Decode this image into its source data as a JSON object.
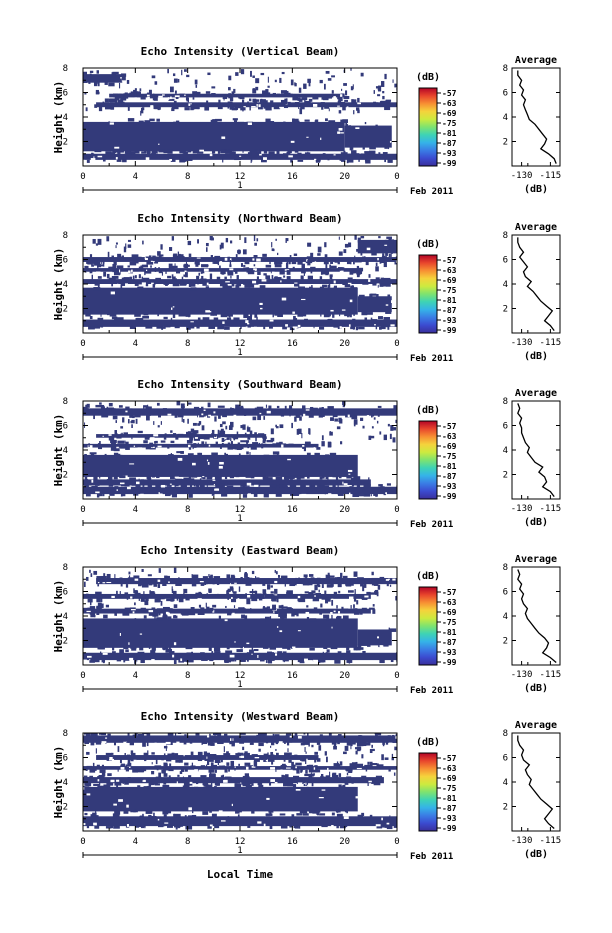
{
  "figure": {
    "x_axis_title": "Local Time",
    "colorbar_unit": "(dB)",
    "colorbar_ticks": [
      "-57",
      "-63",
      "-69",
      "-75",
      "-81",
      "-87",
      "-93",
      "-99"
    ],
    "x_ticks": [
      "0",
      "4",
      "8",
      "12",
      "16",
      "20",
      "0"
    ],
    "date_label": "Feb 2011",
    "day_label": "1",
    "height_label": "Height (km)",
    "y_ticks": [
      "2",
      "4",
      "6",
      "8"
    ],
    "avg_title": "Average",
    "avg_xlabel": "(dB)",
    "colors": {
      "echo": "#333a7a",
      "colormap": [
        "#b40426",
        "#e8452c",
        "#f78f33",
        "#f5d33c",
        "#cdea3f",
        "#7ee36f",
        "#3ed3b5",
        "#35b3e8",
        "#3a7de5",
        "#3b4bd0",
        "#3a2f9b"
      ]
    }
  },
  "chart_data": [
    {
      "type": "heatmap",
      "title": "Echo Intensity (Vertical Beam)",
      "x_range_hours": [
        0,
        24
      ],
      "y_range_km": [
        0,
        8
      ],
      "color_range_db": [
        -99,
        -57
      ],
      "coverage": [
        {
          "x0": 0,
          "x1": 20,
          "y0": 1.2,
          "y1": 3.6
        },
        {
          "x0": 20,
          "x1": 23.6,
          "y0": 1.5,
          "y1": 3.3
        },
        {
          "x0": 0,
          "x1": 24,
          "y0": 0.5,
          "y1": 1.0
        },
        {
          "x0": 1,
          "x1": 24,
          "y0": 4.8,
          "y1": 5.2
        },
        {
          "x0": 2,
          "x1": 20,
          "y0": 5.6,
          "y1": 5.9
        },
        {
          "x0": 0,
          "x1": 3,
          "y0": 6.8,
          "y1": 7.5
        }
      ],
      "average_profile": {
        "x_ticks": [
          "-130",
          "-115"
        ],
        "xlim": [
          -135,
          -110
        ],
        "ylim": [
          0,
          8
        ],
        "points": [
          [
            -112,
            0.2
          ],
          [
            -113,
            0.6
          ],
          [
            -116,
            1.0
          ],
          [
            -120,
            1.4
          ],
          [
            -118,
            1.8
          ],
          [
            -117,
            2.2
          ],
          [
            -119,
            2.6
          ],
          [
            -121,
            3.0
          ],
          [
            -123,
            3.4
          ],
          [
            -126,
            3.8
          ],
          [
            -127,
            4.2
          ],
          [
            -128,
            4.6
          ],
          [
            -129,
            5.0
          ],
          [
            -128,
            5.4
          ],
          [
            -130,
            5.8
          ],
          [
            -129,
            6.2
          ],
          [
            -131,
            6.6
          ],
          [
            -130,
            7.0
          ],
          [
            -132,
            7.4
          ],
          [
            -132,
            7.8
          ]
        ]
      }
    },
    {
      "type": "heatmap",
      "title": "Echo Intensity (Northward Beam)",
      "x_range_hours": [
        0,
        24
      ],
      "y_range_km": [
        0,
        8
      ],
      "color_range_db": [
        -99,
        -57
      ],
      "coverage": [
        {
          "x0": 0,
          "x1": 21,
          "y0": 1.5,
          "y1": 3.7
        },
        {
          "x0": 21,
          "x1": 23.6,
          "y0": 1.7,
          "y1": 3.0
        },
        {
          "x0": 0,
          "x1": 24,
          "y0": 0.5,
          "y1": 1.1
        },
        {
          "x0": 0,
          "x1": 24,
          "y0": 4.0,
          "y1": 4.4
        },
        {
          "x0": 0,
          "x1": 21,
          "y0": 5.0,
          "y1": 5.3
        },
        {
          "x0": 0,
          "x1": 24,
          "y0": 5.8,
          "y1": 6.2
        },
        {
          "x0": 21,
          "x1": 24,
          "y0": 6.5,
          "y1": 7.6
        }
      ],
      "average_profile": {
        "x_ticks": [
          "-130",
          "-115"
        ],
        "xlim": [
          -135,
          -110
        ],
        "ylim": [
          0,
          8
        ],
        "points": [
          [
            -113,
            0.2
          ],
          [
            -115,
            0.6
          ],
          [
            -118,
            1.0
          ],
          [
            -116,
            1.4
          ],
          [
            -114,
            1.8
          ],
          [
            -117,
            2.2
          ],
          [
            -120,
            2.6
          ],
          [
            -122,
            3.0
          ],
          [
            -124,
            3.4
          ],
          [
            -127,
            3.8
          ],
          [
            -125,
            4.2
          ],
          [
            -128,
            4.6
          ],
          [
            -129,
            5.0
          ],
          [
            -127,
            5.4
          ],
          [
            -129,
            5.8
          ],
          [
            -131,
            6.2
          ],
          [
            -129,
            6.6
          ],
          [
            -131,
            7.0
          ],
          [
            -132,
            7.4
          ],
          [
            -132,
            7.8
          ]
        ]
      }
    },
    {
      "type": "heatmap",
      "title": "Echo Intensity (Southward Beam)",
      "x_range_hours": [
        0,
        24
      ],
      "y_range_km": [
        0,
        8
      ],
      "color_range_db": [
        -99,
        -57
      ],
      "coverage": [
        {
          "x0": 0,
          "x1": 21,
          "y0": 1.8,
          "y1": 3.6
        },
        {
          "x0": 0,
          "x1": 24,
          "y0": 0.4,
          "y1": 1.0
        },
        {
          "x0": 0,
          "x1": 22,
          "y0": 1.1,
          "y1": 1.6
        },
        {
          "x0": 0,
          "x1": 18,
          "y0": 4.2,
          "y1": 4.5
        },
        {
          "x0": 1,
          "x1": 14,
          "y0": 5.0,
          "y1": 5.3
        },
        {
          "x0": 0,
          "x1": 24,
          "y0": 6.8,
          "y1": 7.4
        }
      ],
      "average_profile": {
        "x_ticks": [
          "-130",
          "-115"
        ],
        "xlim": [
          -135,
          -110
        ],
        "ylim": [
          0,
          8
        ],
        "points": [
          [
            -113,
            0.2
          ],
          [
            -115,
            0.6
          ],
          [
            -119,
            1.0
          ],
          [
            -117,
            1.4
          ],
          [
            -118,
            1.8
          ],
          [
            -121,
            2.2
          ],
          [
            -119,
            2.6
          ],
          [
            -123,
            3.0
          ],
          [
            -125,
            3.4
          ],
          [
            -127,
            3.8
          ],
          [
            -126,
            4.2
          ],
          [
            -128,
            4.6
          ],
          [
            -129,
            5.0
          ],
          [
            -130,
            5.4
          ],
          [
            -130,
            5.8
          ],
          [
            -131,
            6.2
          ],
          [
            -130,
            6.6
          ],
          [
            -132,
            7.0
          ],
          [
            -131,
            7.4
          ],
          [
            -132,
            7.8
          ]
        ]
      }
    },
    {
      "type": "heatmap",
      "title": "Echo Intensity (Eastward Beam)",
      "x_range_hours": [
        0,
        24
      ],
      "y_range_km": [
        0,
        8
      ],
      "color_range_db": [
        -99,
        -57
      ],
      "coverage": [
        {
          "x0": 0,
          "x1": 21,
          "y0": 1.4,
          "y1": 3.8
        },
        {
          "x0": 21,
          "x1": 23.6,
          "y0": 1.6,
          "y1": 2.9
        },
        {
          "x0": 0,
          "x1": 24,
          "y0": 0.4,
          "y1": 1.0
        },
        {
          "x0": 0,
          "x1": 22,
          "y0": 4.2,
          "y1": 4.6
        },
        {
          "x0": 0,
          "x1": 22,
          "y0": 5.4,
          "y1": 5.8
        },
        {
          "x0": 1,
          "x1": 24,
          "y0": 6.6,
          "y1": 7.1
        }
      ],
      "average_profile": {
        "x_ticks": [
          "-130",
          "-115"
        ],
        "xlim": [
          -135,
          -110
        ],
        "ylim": [
          0,
          8
        ],
        "points": [
          [
            -112,
            0.2
          ],
          [
            -115,
            0.6
          ],
          [
            -119,
            1.0
          ],
          [
            -117,
            1.4
          ],
          [
            -116,
            1.8
          ],
          [
            -118,
            2.2
          ],
          [
            -121,
            2.6
          ],
          [
            -123,
            3.0
          ],
          [
            -125,
            3.4
          ],
          [
            -127,
            3.8
          ],
          [
            -128,
            4.2
          ],
          [
            -127,
            4.6
          ],
          [
            -129,
            5.0
          ],
          [
            -130,
            5.4
          ],
          [
            -129,
            5.8
          ],
          [
            -131,
            6.2
          ],
          [
            -130,
            6.6
          ],
          [
            -132,
            7.0
          ],
          [
            -131,
            7.4
          ],
          [
            -132,
            7.8
          ]
        ]
      }
    },
    {
      "type": "heatmap",
      "title": "Echo Intensity (Westward Beam)",
      "x_range_hours": [
        0,
        24
      ],
      "y_range_km": [
        0,
        8
      ],
      "color_range_db": [
        -99,
        -57
      ],
      "coverage": [
        {
          "x0": 0,
          "x1": 21,
          "y0": 1.6,
          "y1": 3.6
        },
        {
          "x0": 0,
          "x1": 24,
          "y0": 0.4,
          "y1": 1.2
        },
        {
          "x0": 0,
          "x1": 23,
          "y0": 3.9,
          "y1": 4.4
        },
        {
          "x0": 0,
          "x1": 24,
          "y0": 5.0,
          "y1": 5.3
        },
        {
          "x0": 1,
          "x1": 18,
          "y0": 5.8,
          "y1": 6.2
        },
        {
          "x0": 0,
          "x1": 24,
          "y0": 7.2,
          "y1": 7.8
        }
      ],
      "average_profile": {
        "x_ticks": [
          "-130",
          "-115"
        ],
        "xlim": [
          -135,
          -110
        ],
        "ylim": [
          0,
          8
        ],
        "points": [
          [
            -113,
            0.2
          ],
          [
            -116,
            0.6
          ],
          [
            -118,
            1.0
          ],
          [
            -116,
            1.4
          ],
          [
            -114,
            1.8
          ],
          [
            -117,
            2.2
          ],
          [
            -120,
            2.6
          ],
          [
            -122,
            3.0
          ],
          [
            -124,
            3.4
          ],
          [
            -126,
            3.8
          ],
          [
            -125,
            4.2
          ],
          [
            -127,
            4.6
          ],
          [
            -128,
            5.0
          ],
          [
            -126,
            5.4
          ],
          [
            -129,
            5.8
          ],
          [
            -130,
            6.2
          ],
          [
            -129,
            6.6
          ],
          [
            -131,
            7.0
          ],
          [
            -132,
            7.4
          ],
          [
            -132,
            7.8
          ]
        ]
      }
    }
  ]
}
